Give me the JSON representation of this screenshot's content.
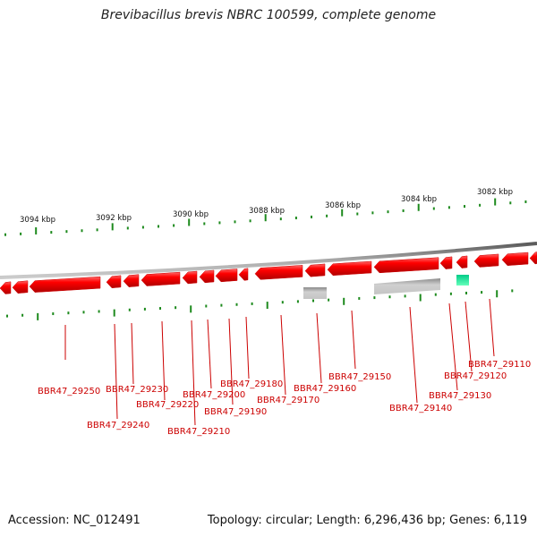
{
  "title": "Brevibacillus brevis NBRC 100599, complete genome",
  "footer": {
    "accession": "Accession: NC_012491",
    "stats": "Topology: circular; Length: 6,296,436 bp; Genes: 6,119"
  },
  "colors": {
    "gene": "#ee0000",
    "gene_dark": "#b30000",
    "gene_light": "#ff5555",
    "grey_feature": "#b8b8b8",
    "rna_feature": "#22dd99",
    "backbone": "#888888",
    "ticks": "#1d8a1d",
    "label": "#cc0000"
  },
  "scale_labels": [
    "3094 kbp",
    "3092 kbp",
    "3090 kbp",
    "3088 kbp",
    "3086 kbp",
    "3084 kbp",
    "3082 kbp"
  ],
  "gene_labels": [
    "BBR47_29250",
    "BBR47_29240",
    "BBR47_29230",
    "BBR47_29220",
    "BBR47_29210",
    "BBR47_29200",
    "BBR47_29190",
    "BBR47_29180",
    "BBR47_29170",
    "BBR47_29160",
    "BBR47_29150",
    "BBR47_29140",
    "BBR47_29130",
    "BBR47_29120",
    "BBR47_29110"
  ]
}
